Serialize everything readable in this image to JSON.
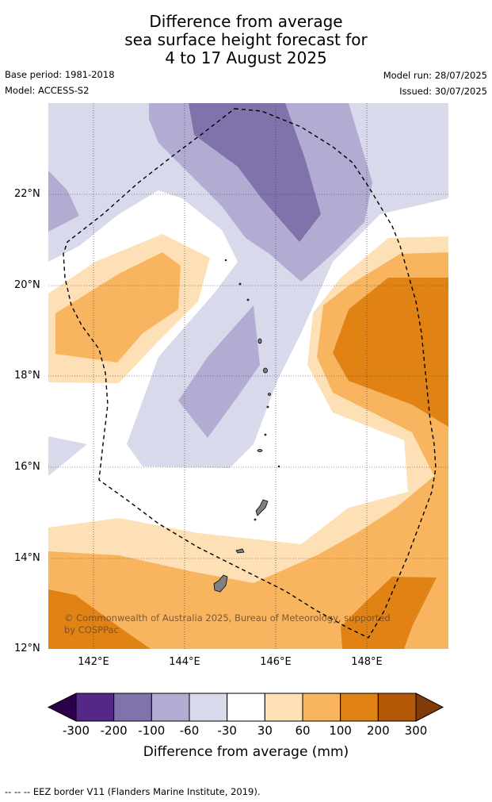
{
  "title": {
    "line1": "Difference from average",
    "line2": "sea surface height forecast for",
    "line3": "4 to 17 August 2025"
  },
  "info": {
    "base_period": "Base period: 1981-2018",
    "model": "Model: ACCESS-S2",
    "model_run": "Model run: 28/07/2025",
    "issued": "Issued: 30/07/2025"
  },
  "map": {
    "latitude_labels": [
      "22°N",
      "20°N",
      "18°N",
      "16°N",
      "14°N",
      "12°N"
    ],
    "longitude_labels": [
      "142°E",
      "144°E",
      "146°E",
      "148°E"
    ],
    "latitude_range": [
      12,
      24
    ],
    "longitude_range": [
      141,
      149.8
    ],
    "copyright": "© Commonwealth of Australia 2025, Bureau of Meteorology, supported by COSPPac",
    "eez_border_style": "dashed black"
  },
  "colorbar": {
    "title": "Difference from average (mm)",
    "ticks": [
      "-300",
      "-200",
      "-100",
      "-60",
      "-30",
      "30",
      "60",
      "100",
      "200",
      "300"
    ],
    "colors": {
      "below_-300": "#2d004b",
      "-300_-200": "#542788",
      "-200_-100": "#8073ac",
      "-100_-60": "#b2abd2",
      "-60_-30": "#d8daeb",
      "-30_30": "#ffffff",
      "30_60": "#fee0b6",
      "60_100": "#f9b45f",
      "100_200": "#e08214",
      "200_300": "#b35806",
      "above_300": "#7f3b08"
    }
  },
  "footer": "--  --  -- EEZ border V11 (Flanders Marine Institute, 2019)."
}
